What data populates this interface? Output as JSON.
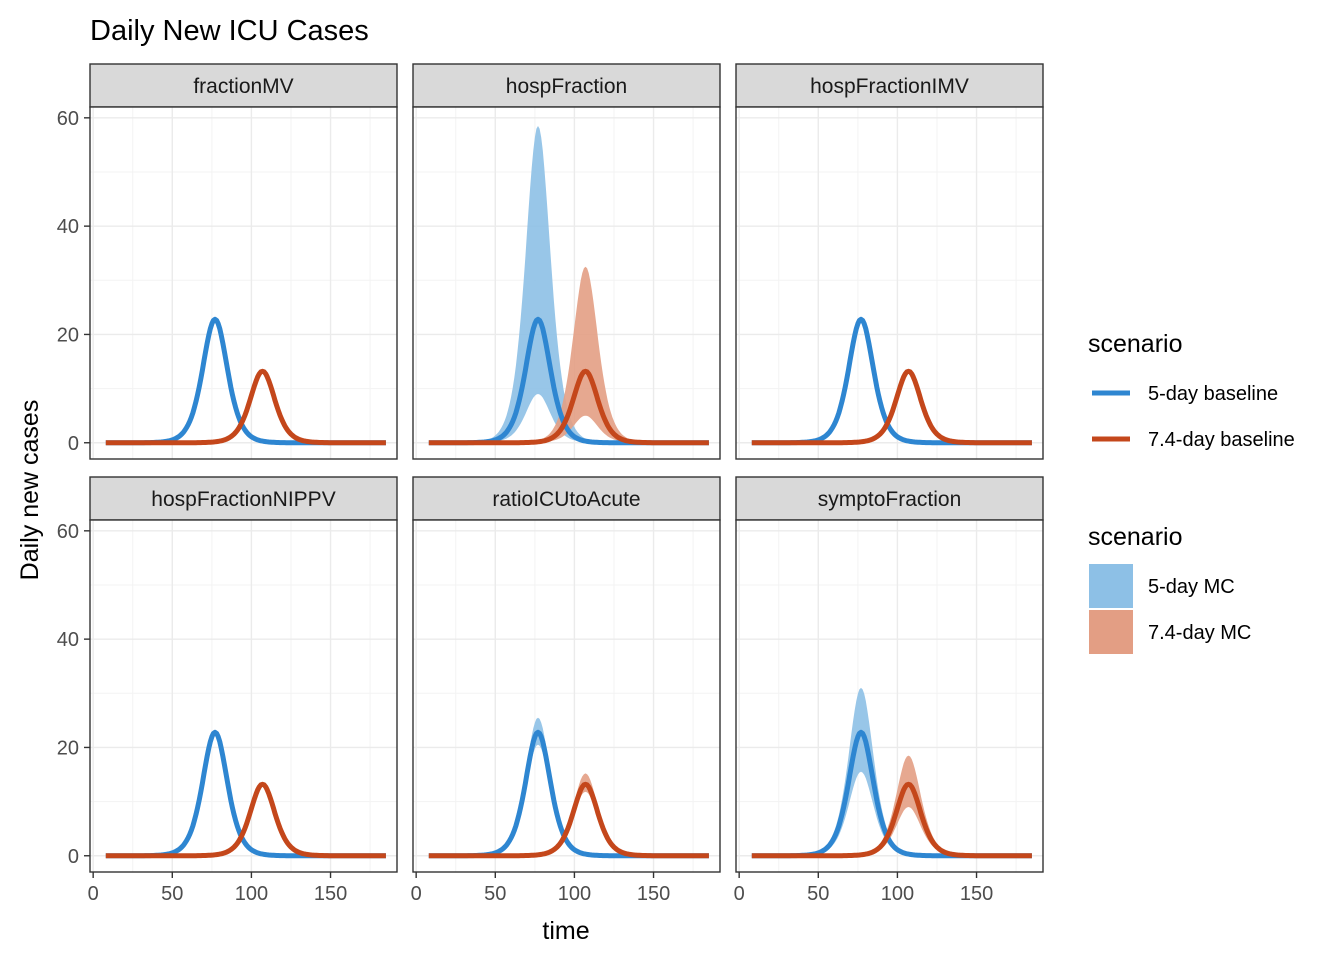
{
  "chart_data": {
    "type": "line",
    "title": "Daily New ICU Cases",
    "xlabel": "time",
    "ylabel": "Daily new cases",
    "xlim": [
      -2,
      192
    ],
    "ylim": [
      -3,
      62
    ],
    "x_ticks": [
      0,
      50,
      100,
      150
    ],
    "y_ticks": [
      0,
      20,
      40,
      60
    ],
    "grid": true,
    "legend_position": "right",
    "colors": {
      "baseline_5": "#2E86D1",
      "baseline_74": "#C4471B",
      "mc_5": "#8DC0E6",
      "mc_74": "#E39E84"
    },
    "legends": [
      {
        "title": "scenario",
        "kind": "line",
        "entries": [
          {
            "label": "5-day baseline",
            "color": "#2E86D1"
          },
          {
            "label": "7.4-day baseline",
            "color": "#C4471B"
          }
        ]
      },
      {
        "title": "scenario",
        "kind": "fill",
        "entries": [
          {
            "label": "5-day MC",
            "color": "#8DC0E6"
          },
          {
            "label": "7.4-day MC",
            "color": "#E39E84"
          }
        ]
      }
    ],
    "baseline_curves": [
      {
        "name": "5-day baseline",
        "peak_time": 77,
        "peak_value": 22.8,
        "start": 8,
        "end": 185
      },
      {
        "name": "7.4-day baseline",
        "peak_time": 107,
        "peak_value": 13.2,
        "start": 8,
        "end": 185
      }
    ],
    "panels": [
      {
        "label": "fractionMV",
        "bands": []
      },
      {
        "label": "hospFraction",
        "bands": [
          {
            "name": "5-day MC",
            "peak_time": 77,
            "upper_peak": 58.5,
            "lower_peak": 9.0
          },
          {
            "name": "7.4-day MC",
            "peak_time": 107,
            "upper_peak": 32.5,
            "lower_peak": 5.0
          }
        ]
      },
      {
        "label": "hospFractionIMV",
        "bands": []
      },
      {
        "label": "hospFractionNIPPV",
        "bands": []
      },
      {
        "label": "ratioICUtoAcute",
        "bands": [
          {
            "name": "5-day MC",
            "peak_time": 77,
            "upper_peak": 25.5,
            "lower_peak": 20.5
          },
          {
            "name": "7.4-day MC",
            "peak_time": 107,
            "upper_peak": 15.2,
            "lower_peak": 11.8
          }
        ]
      },
      {
        "label": "symptoFraction",
        "bands": [
          {
            "name": "5-day MC",
            "peak_time": 77,
            "upper_peak": 31.0,
            "lower_peak": 15.5
          },
          {
            "name": "7.4-day MC",
            "peak_time": 107,
            "upper_peak": 18.5,
            "lower_peak": 9.0
          }
        ]
      }
    ]
  }
}
